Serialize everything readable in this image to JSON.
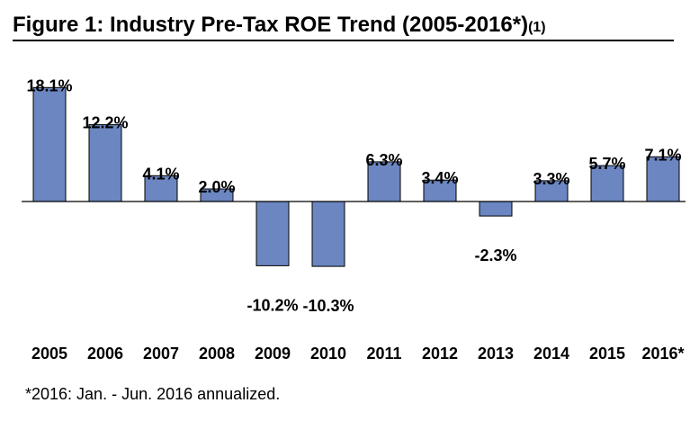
{
  "chart_data": {
    "type": "bar",
    "title": "Figure 1: Industry Pre-Tax ROE Trend (2005-2016*)",
    "title_note": "(1)",
    "categories": [
      "2005",
      "2006",
      "2007",
      "2008",
      "2009",
      "2010",
      "2011",
      "2012",
      "2013",
      "2014",
      "2015",
      "2016*"
    ],
    "values": [
      18.1,
      12.2,
      4.1,
      2.0,
      -10.2,
      -10.3,
      6.3,
      3.4,
      -2.3,
      3.3,
      5.7,
      7.1
    ],
    "labels": [
      "18.1%",
      "12.2%",
      "4.1%",
      "2.0%",
      "-10.2%",
      "-10.3%",
      "6.3%",
      "3.4%",
      "-2.3%",
      "3.3%",
      "5.7%",
      "7.1%"
    ],
    "xlabel": "",
    "ylabel": "",
    "grid": false,
    "legend": "none",
    "bar_color": "#6b86c1",
    "footnote": "*2016: Jan. - Jun. 2016 annualized."
  }
}
